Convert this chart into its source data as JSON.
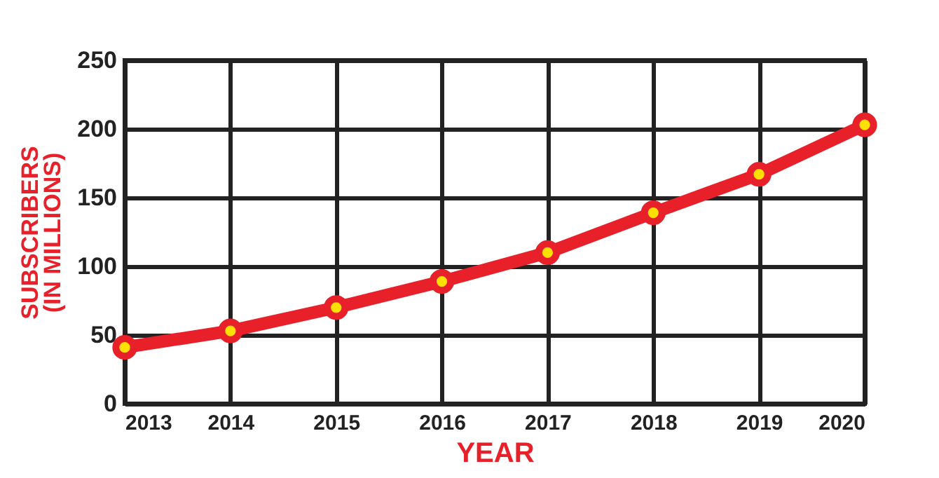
{
  "chart_data": {
    "type": "line",
    "xlabel": "YEAR",
    "ylabel": "SUBSCRIBERS\n(IN MILLIONS)",
    "x": [
      2013,
      2014,
      2015,
      2016,
      2017,
      2018,
      2019,
      2020
    ],
    "series": [
      {
        "color": "#e8202a",
        "values": [
          41,
          53,
          70,
          89,
          110,
          139,
          167,
          203
        ]
      }
    ],
    "xlim": [
      2013,
      2020
    ],
    "xticks": [
      2013,
      2014,
      2015,
      2016,
      2017,
      2018,
      2019,
      2020
    ],
    "ylim": [
      0,
      250
    ],
    "yticks": [
      0,
      50,
      100,
      150,
      200,
      250
    ],
    "grid": true,
    "marker": "circle",
    "line_style": "solid"
  }
}
